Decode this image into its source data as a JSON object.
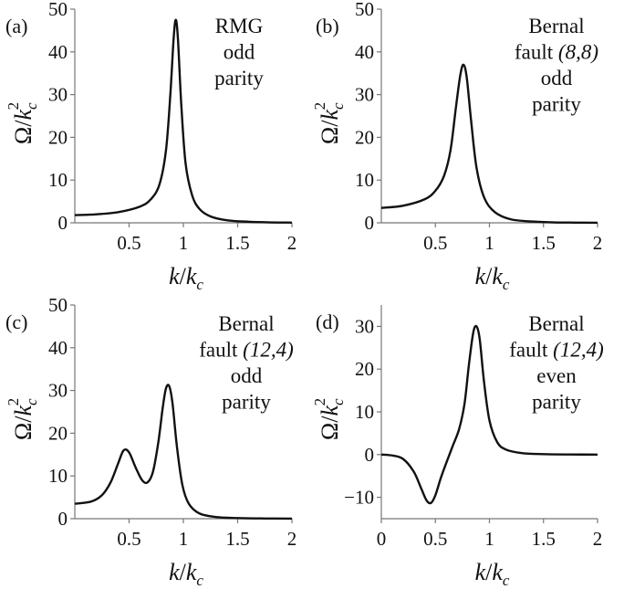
{
  "chart_data": [
    {
      "type": "line",
      "panel_label": "(a)",
      "annotation": [
        "RMG",
        "odd",
        "parity"
      ],
      "xlabel": {
        "k": "k",
        "slash": "/",
        "kc": "k",
        "c": "c"
      },
      "ylabel": {
        "omega": "Ω",
        "slash": "/",
        "k": "k",
        "c": "c",
        "exp": "2"
      },
      "xlim": [
        0,
        2
      ],
      "ylim": [
        0,
        50
      ],
      "xticks": [
        {
          "v": 0.5,
          "label": "0.5"
        },
        {
          "v": 1,
          "label": "1"
        },
        {
          "v": 1.5,
          "label": "1.5"
        },
        {
          "v": 2,
          "label": "2"
        }
      ],
      "yticks": [
        {
          "v": 0,
          "label": "0"
        },
        {
          "v": 10,
          "label": "10"
        },
        {
          "v": 20,
          "label": "20"
        },
        {
          "v": 30,
          "label": "30"
        },
        {
          "v": 40,
          "label": "40"
        },
        {
          "v": 50,
          "label": "50"
        }
      ],
      "series": [
        {
          "x": [
            0.0,
            0.2,
            0.4,
            0.6,
            0.7,
            0.78,
            0.84,
            0.88,
            0.91,
            0.93,
            0.95,
            0.98,
            1.02,
            1.08,
            1.15,
            1.25,
            1.4,
            1.6,
            1.8,
            2.0
          ],
          "y": [
            1.8,
            2.0,
            2.5,
            3.8,
            5.5,
            9.0,
            17.0,
            30.0,
            43.0,
            47.5,
            43.0,
            28.0,
            14.0,
            6.5,
            3.2,
            1.5,
            0.6,
            0.25,
            0.1,
            0.05
          ]
        }
      ]
    },
    {
      "type": "line",
      "panel_label": "(b)",
      "annotation": [
        "Bernal",
        "fault ",
        "(8,8)",
        "odd",
        "parity"
      ],
      "xlabel": {
        "k": "k",
        "slash": "/",
        "kc": "k",
        "c": "c"
      },
      "ylabel": {
        "omega": "Ω",
        "slash": "/",
        "k": "k",
        "c": "c",
        "exp": "2"
      },
      "xlim": [
        0,
        2
      ],
      "ylim": [
        0,
        50
      ],
      "xticks": [
        {
          "v": 0.5,
          "label": "0.5"
        },
        {
          "v": 1,
          "label": "1"
        },
        {
          "v": 1.5,
          "label": "1.5"
        },
        {
          "v": 2,
          "label": "2"
        }
      ],
      "yticks": [
        {
          "v": 0,
          "label": "0"
        },
        {
          "v": 10,
          "label": "10"
        },
        {
          "v": 20,
          "label": "20"
        },
        {
          "v": 30,
          "label": "30"
        },
        {
          "v": 40,
          "label": "40"
        },
        {
          "v": 50,
          "label": "50"
        }
      ],
      "series": [
        {
          "x": [
            0.0,
            0.2,
            0.4,
            0.5,
            0.58,
            0.64,
            0.69,
            0.73,
            0.76,
            0.79,
            0.83,
            0.88,
            0.95,
            1.05,
            1.2,
            1.4,
            1.6,
            1.8,
            2.0
          ],
          "y": [
            3.5,
            4.0,
            5.5,
            7.5,
            11.0,
            17.0,
            27.0,
            34.5,
            37.0,
            34.0,
            24.0,
            13.0,
            6.0,
            2.5,
            0.8,
            0.3,
            0.1,
            0.05,
            0.02
          ]
        }
      ]
    },
    {
      "type": "line",
      "panel_label": "(c)",
      "annotation": [
        "Bernal",
        "fault ",
        "(12,4)",
        "odd",
        "parity"
      ],
      "xlabel": {
        "k": "k",
        "slash": "/",
        "kc": "k",
        "c": "c"
      },
      "ylabel": {
        "omega": "Ω",
        "slash": "/",
        "k": "k",
        "c": "c",
        "exp": "2"
      },
      "xlim": [
        0,
        2
      ],
      "ylim": [
        0,
        50
      ],
      "xticks": [
        {
          "v": 0.5,
          "label": "0.5"
        },
        {
          "v": 1,
          "label": "1"
        },
        {
          "v": 1.5,
          "label": "1.5"
        },
        {
          "v": 2,
          "label": "2"
        }
      ],
      "yticks": [
        {
          "v": 0,
          "label": "0"
        },
        {
          "v": 10,
          "label": "10"
        },
        {
          "v": 20,
          "label": "20"
        },
        {
          "v": 30,
          "label": "30"
        },
        {
          "v": 40,
          "label": "40"
        },
        {
          "v": 50,
          "label": "50"
        }
      ],
      "series": [
        {
          "x": [
            0.0,
            0.15,
            0.25,
            0.33,
            0.4,
            0.45,
            0.5,
            0.56,
            0.62,
            0.67,
            0.72,
            0.77,
            0.81,
            0.84,
            0.87,
            0.9,
            0.94,
            0.99,
            1.05,
            1.15,
            1.3,
            1.5,
            1.75,
            2.0
          ],
          "y": [
            3.5,
            4.0,
            5.5,
            8.5,
            13.0,
            16.0,
            15.5,
            12.0,
            9.0,
            8.5,
            11.0,
            18.0,
            26.0,
            30.5,
            31.0,
            27.0,
            17.0,
            8.0,
            3.5,
            1.2,
            0.4,
            0.15,
            0.05,
            0.02
          ]
        }
      ]
    },
    {
      "type": "line",
      "panel_label": "(d)",
      "annotation": [
        "Bernal",
        "fault ",
        "(12,4)",
        "even",
        "parity"
      ],
      "xlabel": {
        "k": "k",
        "slash": "/",
        "kc": "k",
        "c": "c"
      },
      "ylabel": {
        "omega": "Ω",
        "slash": "/",
        "k": "k",
        "c": "c",
        "exp": "2"
      },
      "xlim": [
        0,
        2
      ],
      "ylim": [
        -15,
        35
      ],
      "xticks": [
        {
          "v": 0,
          "label": "0"
        },
        {
          "v": 0.5,
          "label": "0.5"
        },
        {
          "v": 1,
          "label": "1"
        },
        {
          "v": 1.5,
          "label": "1.5"
        },
        {
          "v": 2,
          "label": "2"
        }
      ],
      "yticks": [
        {
          "v": -10,
          "label": "−10"
        },
        {
          "v": 0,
          "label": "0"
        },
        {
          "v": 10,
          "label": "10"
        },
        {
          "v": 20,
          "label": "20"
        },
        {
          "v": 30,
          "label": "30"
        }
      ],
      "series": [
        {
          "x": [
            0.0,
            0.1,
            0.2,
            0.3,
            0.37,
            0.42,
            0.46,
            0.5,
            0.55,
            0.6,
            0.66,
            0.72,
            0.77,
            0.81,
            0.85,
            0.88,
            0.91,
            0.95,
            1.0,
            1.07,
            1.15,
            1.3,
            1.5,
            1.75,
            2.0
          ],
          "y": [
            0.0,
            -0.2,
            -1.0,
            -4.0,
            -8.0,
            -10.8,
            -11.3,
            -9.5,
            -5.5,
            -2.0,
            2.0,
            6.0,
            12.0,
            21.0,
            28.5,
            30.0,
            27.0,
            17.0,
            8.0,
            3.0,
            1.2,
            0.35,
            0.1,
            0.02,
            0.0
          ]
        }
      ]
    }
  ]
}
